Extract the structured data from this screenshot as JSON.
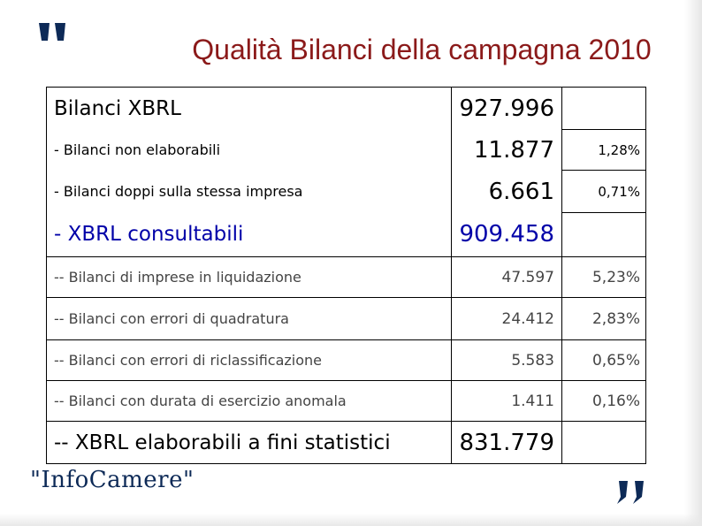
{
  "slide": {
    "title": "Qualità Bilanci della campagna 2010",
    "accent_color": "#8b1a1a",
    "blue_color": "#0000a8"
  },
  "table": {
    "rows": [
      {
        "label": "Bilanci XBRL",
        "value": "927.996",
        "pct": ""
      },
      {
        "label": "- Bilanci non elaborabili",
        "value": "11.877",
        "pct": "1,28%"
      },
      {
        "label": "- Bilanci doppi sulla stessa impresa",
        "value": "6.661",
        "pct": "0,71%"
      },
      {
        "label": "- XBRL consultabili",
        "value": "909.458",
        "pct": ""
      },
      {
        "label": "-- Bilanci di imprese in liquidazione",
        "value": "47.597",
        "pct": "5,23%"
      },
      {
        "label": "-- Bilanci con errori di quadratura",
        "value": "24.412",
        "pct": "2,83%"
      },
      {
        "label": "-- Bilanci con errori di riclassificazione",
        "value": "5.583",
        "pct": "0,65%"
      },
      {
        "label": "-- Bilanci con durata di esercizio anomala",
        "value": "1.411",
        "pct": "0,16%"
      },
      {
        "label": "-- XBRL elaborabili a fini statistici",
        "value": "831.779",
        "pct": ""
      }
    ]
  },
  "logo": {
    "text": "\"InfoCamere\""
  },
  "icons": {
    "open": "quote-open-icon",
    "close": "quote-close-icon"
  }
}
